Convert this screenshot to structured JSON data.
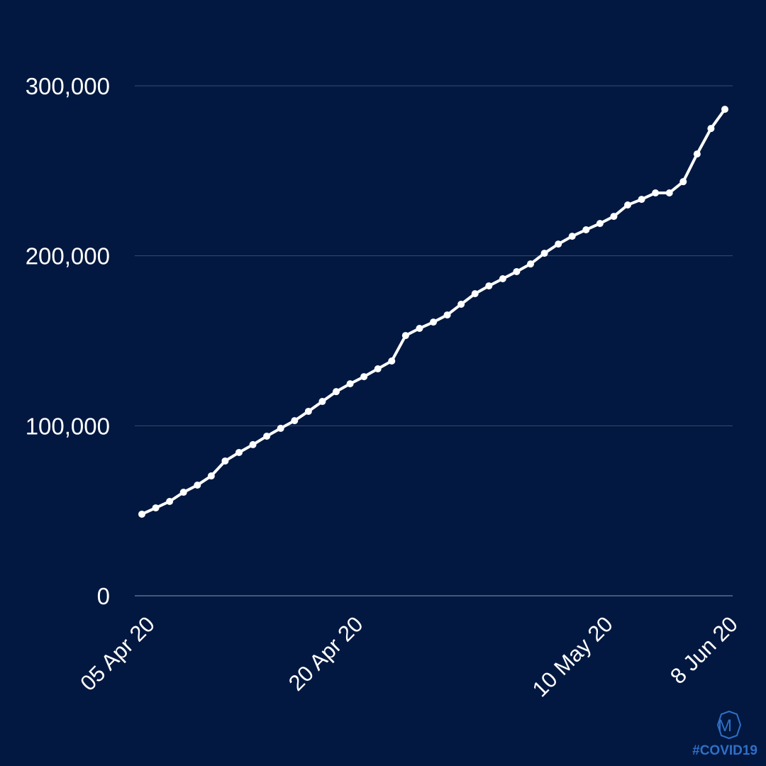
{
  "chart_data": {
    "type": "line",
    "categories": [
      "05 Apr 20",
      null,
      null,
      null,
      null,
      null,
      null,
      null,
      null,
      null,
      null,
      null,
      null,
      null,
      null,
      "20 Apr 20",
      null,
      null,
      null,
      null,
      null,
      null,
      null,
      null,
      null,
      null,
      null,
      null,
      null,
      null,
      null,
      null,
      null,
      "10 May 20",
      null,
      null,
      null,
      null,
      null,
      null,
      null,
      null,
      "8 Jun 20"
    ],
    "series": [
      {
        "color": "#ffffff",
        "values": [
          48000,
          51700,
          55500,
          60900,
          65100,
          70500,
          79300,
          84300,
          88900,
          93900,
          98500,
          103000,
          108500,
          114300,
          120100,
          124700,
          128900,
          133500,
          138100,
          153100,
          157300,
          161000,
          165200,
          171500,
          177700,
          182300,
          186500,
          190700,
          195200,
          201500,
          206900,
          211500,
          215300,
          219000,
          223200,
          229900,
          233200,
          237000,
          237000,
          243600,
          259900,
          274900,
          286200
        ]
      }
    ],
    "ylim": [
      0,
      300000
    ],
    "yticks": [
      0,
      {
        "value": 100000,
        "label": "100,000"
      },
      {
        "value": 200000,
        "label": "200,000"
      },
      {
        "value": 300000,
        "label": "300,000"
      }
    ],
    "grid": true
  },
  "logo": {
    "letter": "M",
    "tag": "#COVID19"
  }
}
